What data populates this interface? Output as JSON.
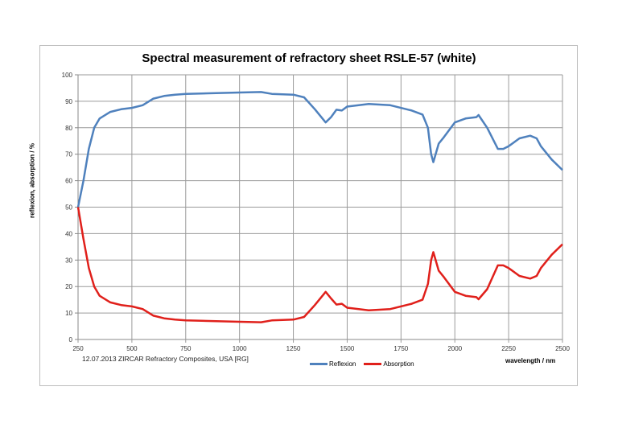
{
  "chart_data": {
    "type": "line",
    "title": "Spectral measurement of refractory sheet RSLE-57 (white)",
    "xlabel": "wavelength / nm",
    "ylabel": "reflexion, absorption / %",
    "footer": "12.07.2013 ZIRCAR Refractory Composites, USA [RG]",
    "xlim": [
      250,
      2500
    ],
    "ylim": [
      0,
      100
    ],
    "xticks": [
      250,
      500,
      750,
      1000,
      1250,
      1500,
      1750,
      2000,
      2250,
      2500
    ],
    "yticks": [
      0,
      10,
      20,
      30,
      40,
      50,
      60,
      70,
      80,
      90,
      100
    ],
    "grid": true,
    "legend_position": "bottom",
    "x": [
      250,
      275,
      300,
      325,
      350,
      400,
      450,
      500,
      550,
      600,
      650,
      700,
      750,
      1000,
      1100,
      1150,
      1250,
      1300,
      1350,
      1400,
      1425,
      1450,
      1475,
      1500,
      1600,
      1700,
      1800,
      1850,
      1875,
      1890,
      1900,
      1925,
      1950,
      2000,
      2050,
      2100,
      2110,
      2150,
      2200,
      2225,
      2250,
      2300,
      2350,
      2380,
      2400,
      2450,
      2500
    ],
    "series": [
      {
        "name": "Reflexion",
        "color": "#4f81bd",
        "values": [
          50,
          60,
          72,
          80,
          83.5,
          86,
          87,
          87.5,
          88.5,
          91,
          92,
          92.5,
          92.8,
          93.3,
          93.5,
          92.8,
          92.5,
          91.5,
          87,
          82,
          84,
          86.8,
          86.5,
          88,
          89,
          88.5,
          86.5,
          85,
          80,
          70,
          67,
          74,
          76.5,
          82,
          83.5,
          84,
          84.8,
          80,
          72,
          72,
          73,
          76,
          77,
          76,
          73,
          68,
          64
        ]
      },
      {
        "name": "Absorption",
        "color": "#e0201b",
        "values": [
          50,
          38,
          27,
          20,
          16.5,
          14,
          13,
          12.5,
          11.5,
          9,
          8,
          7.5,
          7.2,
          6.7,
          6.5,
          7.2,
          7.5,
          8.5,
          13,
          18,
          15.5,
          13.2,
          13.5,
          12,
          11,
          11.5,
          13.5,
          15,
          21,
          30,
          33,
          26,
          23.5,
          18,
          16.5,
          16,
          15.2,
          19,
          28,
          28,
          27,
          24,
          23,
          24,
          27,
          32,
          36
        ]
      }
    ]
  }
}
